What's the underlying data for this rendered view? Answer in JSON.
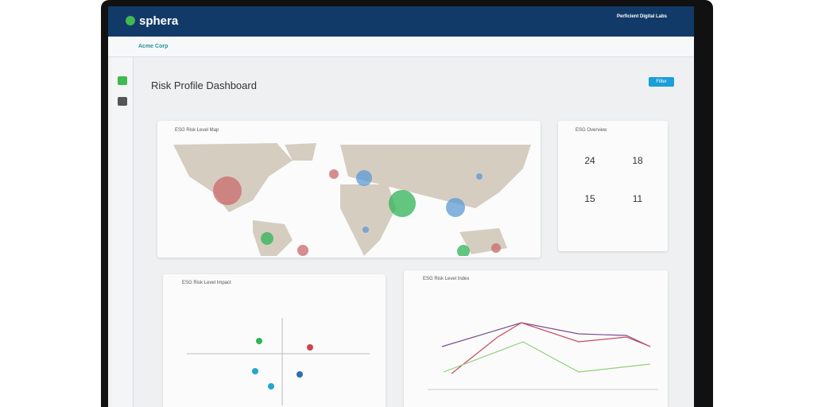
{
  "header": {
    "logo": "sphera",
    "org": "Perficient Digital Labs"
  },
  "subheader": {
    "company": "Acme Corp"
  },
  "page": {
    "title": "Risk Profile Dashboard",
    "filter_button": "Filter"
  },
  "cards": {
    "map": {
      "title": "ESG Risk Level Map"
    },
    "overview": {
      "title": "ESG Overview",
      "stats": [
        24,
        18,
        15,
        11
      ]
    },
    "impact": {
      "title": "ESG Risk Level Impact"
    },
    "index": {
      "title": "ESG Risk Level Index"
    }
  }
}
